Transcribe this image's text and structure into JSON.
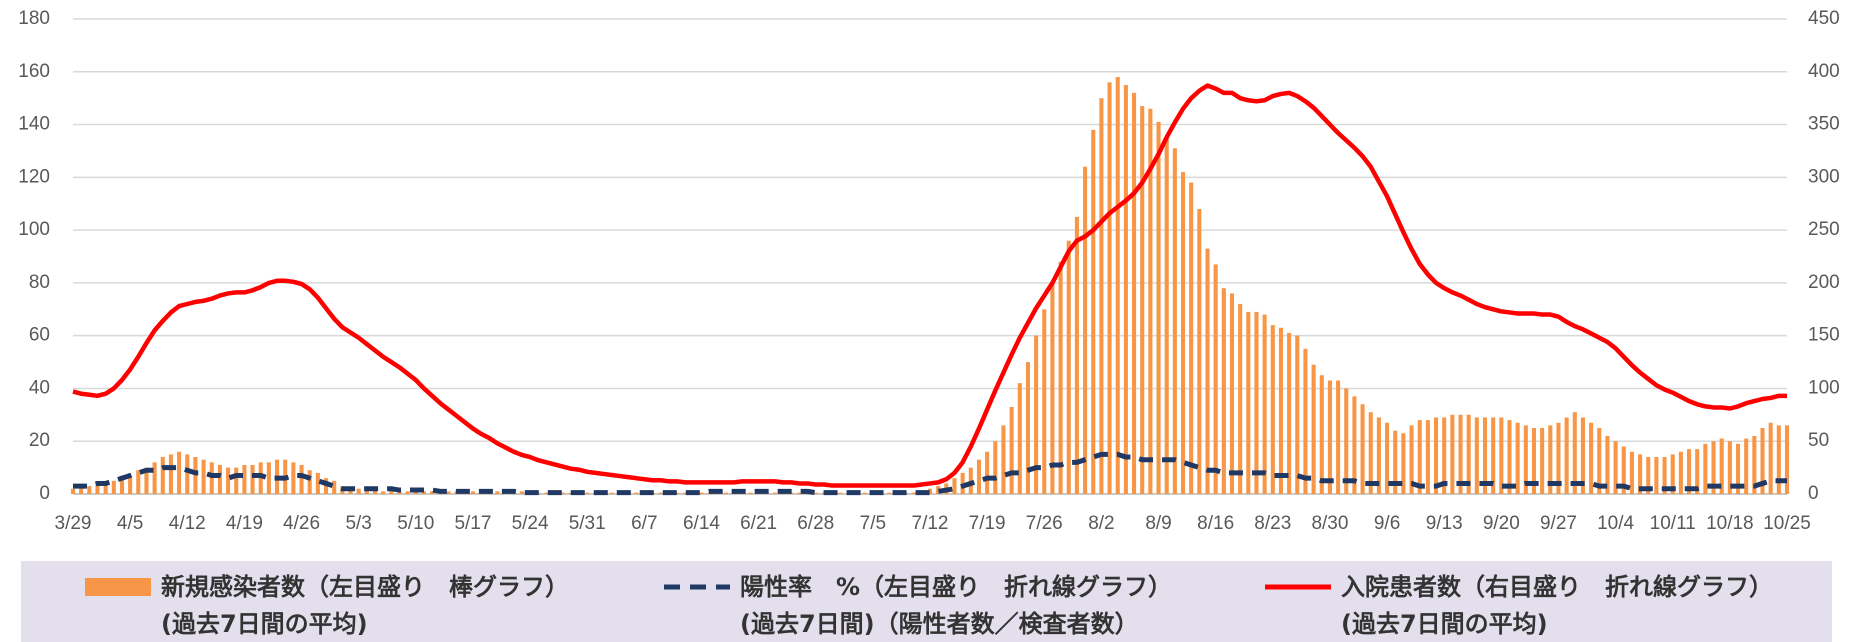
{
  "chart_data": {
    "type": "combo",
    "categories": [
      "3/29",
      null,
      null,
      null,
      null,
      null,
      null,
      "4/5",
      null,
      null,
      null,
      null,
      null,
      null,
      "4/12",
      null,
      null,
      null,
      null,
      null,
      null,
      "4/19",
      null,
      null,
      null,
      null,
      null,
      null,
      "4/26",
      null,
      null,
      null,
      null,
      null,
      null,
      "5/3",
      null,
      null,
      null,
      null,
      null,
      null,
      "5/10",
      null,
      null,
      null,
      null,
      null,
      null,
      "5/17",
      null,
      null,
      null,
      null,
      null,
      null,
      "5/24",
      null,
      null,
      null,
      null,
      null,
      null,
      "5/31",
      null,
      null,
      null,
      null,
      null,
      null,
      "6/7",
      null,
      null,
      null,
      null,
      null,
      null,
      "6/14",
      null,
      null,
      null,
      null,
      null,
      null,
      "6/21",
      null,
      null,
      null,
      null,
      null,
      null,
      "6/28",
      null,
      null,
      null,
      null,
      null,
      null,
      "7/5",
      null,
      null,
      null,
      null,
      null,
      null,
      "7/12",
      null,
      null,
      null,
      null,
      null,
      null,
      "7/19",
      null,
      null,
      null,
      null,
      null,
      null,
      "7/26",
      null,
      null,
      null,
      null,
      null,
      null,
      "8/2",
      null,
      null,
      null,
      null,
      null,
      null,
      "8/9",
      null,
      null,
      null,
      null,
      null,
      null,
      "8/16",
      null,
      null,
      null,
      null,
      null,
      null,
      "8/23",
      null,
      null,
      null,
      null,
      null,
      null,
      "8/30",
      null,
      null,
      null,
      null,
      null,
      null,
      "9/6",
      null,
      null,
      null,
      null,
      null,
      null,
      "9/13",
      null,
      null,
      null,
      null,
      null,
      null,
      "9/20",
      null,
      null,
      null,
      null,
      null,
      null,
      "9/27",
      null,
      null,
      null,
      null,
      null,
      null,
      "10/4",
      null,
      null,
      null,
      null,
      null,
      null,
      "10/11",
      null,
      null,
      null,
      null,
      null,
      null,
      "10/18",
      null,
      null,
      null,
      null,
      null,
      null,
      "10/25"
    ],
    "ylim": [
      0,
      180
    ],
    "yticks": [
      0,
      20,
      40,
      60,
      80,
      100,
      120,
      140,
      160,
      180
    ],
    "y2lim": [
      0,
      450
    ],
    "y2ticks": [
      0,
      50,
      100,
      150,
      200,
      250,
      300,
      350,
      400,
      450
    ],
    "grid": true,
    "series": [
      {
        "name": "新規感染者数（左目盛り　棒グラフ）",
        "subname": "(過去7日間の平均)",
        "type": "bar",
        "color": "#f79646",
        "axis": "y",
        "values": [
          2,
          3,
          3,
          4,
          4,
          5,
          6,
          7,
          9,
          10,
          12,
          14,
          15,
          16,
          15,
          14,
          13,
          12,
          11,
          10,
          10,
          11,
          11,
          12,
          12,
          13,
          13,
          12,
          11,
          9,
          8,
          6,
          5,
          3,
          2,
          2,
          2,
          2,
          1,
          1,
          1,
          1,
          1,
          1,
          1,
          1,
          1,
          1,
          1,
          1,
          1,
          1,
          1,
          1,
          1,
          1,
          0.5,
          0.5,
          0.5,
          0.5,
          0.5,
          0.5,
          0.5,
          0.5,
          0.5,
          0.5,
          0.5,
          0.5,
          0.5,
          0.5,
          0.5,
          0.5,
          0.5,
          0.5,
          0.5,
          0.5,
          0.5,
          0.5,
          0.5,
          0.5,
          0.5,
          0.5,
          0.5,
          0.5,
          0.5,
          0.5,
          0.5,
          0.5,
          0.5,
          0.5,
          0.5,
          0.5,
          0.5,
          0.5,
          0.5,
          0.5,
          0.5,
          0.5,
          0.5,
          0.5,
          0.5,
          0.5,
          0.5,
          0.5,
          0.5,
          2,
          3,
          4,
          6,
          8,
          10,
          13,
          16,
          20,
          26,
          33,
          42,
          50,
          60,
          70,
          80,
          88,
          96,
          105,
          124,
          138,
          150,
          156,
          158,
          155,
          152,
          147,
          146,
          141,
          135,
          131,
          122,
          118,
          108,
          93,
          87,
          78,
          76,
          72,
          69,
          69,
          68,
          64,
          63,
          61,
          60,
          55,
          49,
          45,
          43,
          43,
          40,
          37,
          34,
          31,
          29,
          27,
          24,
          23,
          26,
          28,
          28,
          29,
          29,
          30,
          30,
          30,
          29,
          29,
          29,
          29,
          28,
          27,
          26,
          25,
          25,
          26,
          27,
          29,
          31,
          29,
          27,
          25,
          22,
          20,
          18,
          16,
          15,
          14,
          14,
          14,
          15,
          16,
          17,
          17,
          19,
          20,
          21,
          20,
          19,
          21,
          22,
          25,
          27,
          26,
          26
        ]
      },
      {
        "name": "陽性率　%（左目盛り　折れ線グラフ）",
        "subname": "(過去7日間)（陽性者数／検査者数）",
        "type": "line",
        "dashed": true,
        "color": "#1f3864",
        "axis": "y",
        "values": [
          3,
          3,
          3,
          4,
          4,
          5,
          6,
          7,
          8,
          9,
          9,
          10,
          10,
          10,
          9,
          8,
          8,
          7,
          7,
          6,
          7,
          7,
          7,
          7,
          6,
          6,
          6,
          7,
          7,
          6,
          5,
          4,
          3,
          2,
          2,
          2,
          2,
          2,
          2,
          2,
          1.5,
          1.5,
          1.5,
          1.5,
          1.5,
          1,
          1,
          1,
          1,
          1,
          1,
          1,
          1,
          1,
          1,
          0.5,
          0.5,
          0.5,
          0.5,
          0.5,
          0.5,
          0.5,
          0.5,
          0.5,
          0.5,
          0.5,
          0.5,
          0.5,
          0.5,
          0.5,
          0.5,
          0.5,
          0.5,
          0.5,
          0.5,
          0.5,
          0.5,
          0.5,
          1,
          1,
          1,
          1,
          1,
          1,
          1,
          1,
          1,
          1,
          1,
          1,
          1,
          0.5,
          0.5,
          0.5,
          0.5,
          0.5,
          0.5,
          0.5,
          0.5,
          0.5,
          0.5,
          0.5,
          0.5,
          0.5,
          0.5,
          0.5,
          1,
          1.5,
          2,
          3,
          4,
          5,
          6,
          6,
          7,
          8,
          8,
          9,
          10,
          10,
          11,
          11,
          12,
          12,
          13,
          14,
          15,
          15,
          15,
          14,
          14,
          13,
          13,
          13,
          13,
          13,
          12,
          11,
          10,
          9,
          9,
          8,
          8,
          8,
          8,
          8,
          8,
          7,
          7,
          7,
          7,
          6,
          6,
          5,
          5,
          5,
          5,
          5,
          4,
          4,
          4,
          4,
          4,
          4,
          4,
          3,
          3,
          3,
          4,
          4,
          4,
          4,
          4,
          4,
          4,
          3,
          3,
          3,
          4,
          4,
          4,
          4,
          4,
          4,
          4,
          4,
          4,
          3,
          3,
          3,
          3,
          2,
          2,
          2,
          2,
          2,
          2,
          2,
          2,
          2,
          3,
          3,
          3,
          3,
          3,
          3,
          3,
          4,
          5,
          5,
          5
        ]
      },
      {
        "name": "入院患者数（右目盛り　折れ線グラフ）",
        "subname": "(過去7日間の平均)",
        "type": "line",
        "dashed": false,
        "color": "#ff0000",
        "axis": "y2",
        "values": [
          97,
          95,
          94,
          93,
          95,
          100,
          108,
          118,
          130,
          143,
          155,
          164,
          172,
          178,
          180,
          182,
          183,
          185,
          188,
          190,
          191,
          191,
          193,
          196,
          200,
          202,
          202,
          201,
          199,
          194,
          186,
          176,
          166,
          158,
          153,
          148,
          142,
          136,
          130,
          125,
          120,
          114,
          108,
          100,
          93,
          86,
          80,
          74,
          68,
          62,
          57,
          53,
          48,
          44,
          40,
          37,
          35,
          32,
          30,
          28,
          26,
          24,
          23,
          21,
          20,
          19,
          18,
          17,
          16,
          15,
          14,
          13,
          13,
          12,
          12,
          11,
          11,
          11,
          11,
          11,
          11,
          11,
          12,
          12,
          12,
          12,
          12,
          11,
          11,
          10,
          10,
          9,
          9,
          8,
          8,
          8,
          8,
          8,
          8,
          8,
          8,
          8,
          8,
          8,
          9,
          10,
          11,
          14,
          20,
          30,
          45,
          62,
          80,
          98,
          115,
          132,
          148,
          162,
          176,
          188,
          200,
          215,
          230,
          240,
          244,
          250,
          258,
          266,
          272,
          278,
          285,
          295,
          308,
          322,
          338,
          352,
          365,
          375,
          382,
          387,
          384,
          380,
          380,
          375,
          373,
          372,
          373,
          377,
          379,
          380,
          377,
          372,
          366,
          358,
          350,
          342,
          335,
          328,
          320,
          310,
          296,
          282,
          265,
          248,
          232,
          218,
          208,
          200,
          195,
          191,
          188,
          184,
          180,
          177,
          175,
          173,
          172,
          171,
          171,
          171,
          170,
          170,
          168,
          163,
          159,
          156,
          152,
          148,
          144,
          138,
          130,
          122,
          115,
          109,
          103,
          99,
          96,
          92,
          88,
          85,
          83,
          82,
          82,
          81,
          83,
          86,
          88,
          90,
          91,
          93,
          93
        ]
      }
    ]
  }
}
